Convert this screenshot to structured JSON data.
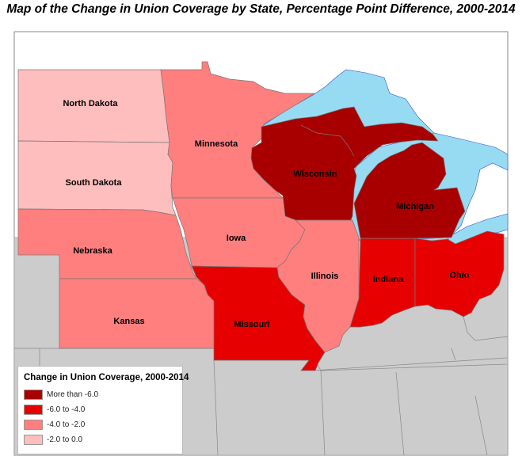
{
  "title": "Map of the Change in Union Coverage by State, Percentage Point Difference, 2000-2014",
  "colors": {
    "more_than_-6": "#a80000",
    "-6_to_-4": "#e60000",
    "-4_to_-2": "#ff7f7f",
    "-2_to_0": "#ffbebe",
    "water": "#97dbf2",
    "other_land": "#cccccc"
  },
  "legend": {
    "title": "Change in Union Coverage, 2000-2014",
    "items": [
      {
        "label": "More than -6.0",
        "color": "#a80000"
      },
      {
        "label": "-6.0 to -4.0",
        "color": "#e60000"
      },
      {
        "label": "-4.0 to -2.0",
        "color": "#ff7f7f"
      },
      {
        "label": "-2.0 to 0.0",
        "color": "#ffbebe"
      }
    ]
  },
  "states": [
    {
      "name": "North Dakota",
      "category": "-2.0 to 0.0"
    },
    {
      "name": "South Dakota",
      "category": "-2.0 to 0.0"
    },
    {
      "name": "Minnesota",
      "category": "-4.0 to -2.0"
    },
    {
      "name": "Wisconsin",
      "category": "More than -6.0"
    },
    {
      "name": "Michigan",
      "category": "More than -6.0"
    },
    {
      "name": "Iowa",
      "category": "-4.0 to -2.0"
    },
    {
      "name": "Nebraska",
      "category": "-4.0 to -2.0"
    },
    {
      "name": "Illinois",
      "category": "-4.0 to -2.0"
    },
    {
      "name": "Indiana",
      "category": "-6.0 to -4.0"
    },
    {
      "name": "Ohio",
      "category": "-6.0 to -4.0"
    },
    {
      "name": "Kansas",
      "category": "-4.0 to -2.0"
    },
    {
      "name": "Missouri",
      "category": "-6.0 to -4.0"
    }
  ]
}
